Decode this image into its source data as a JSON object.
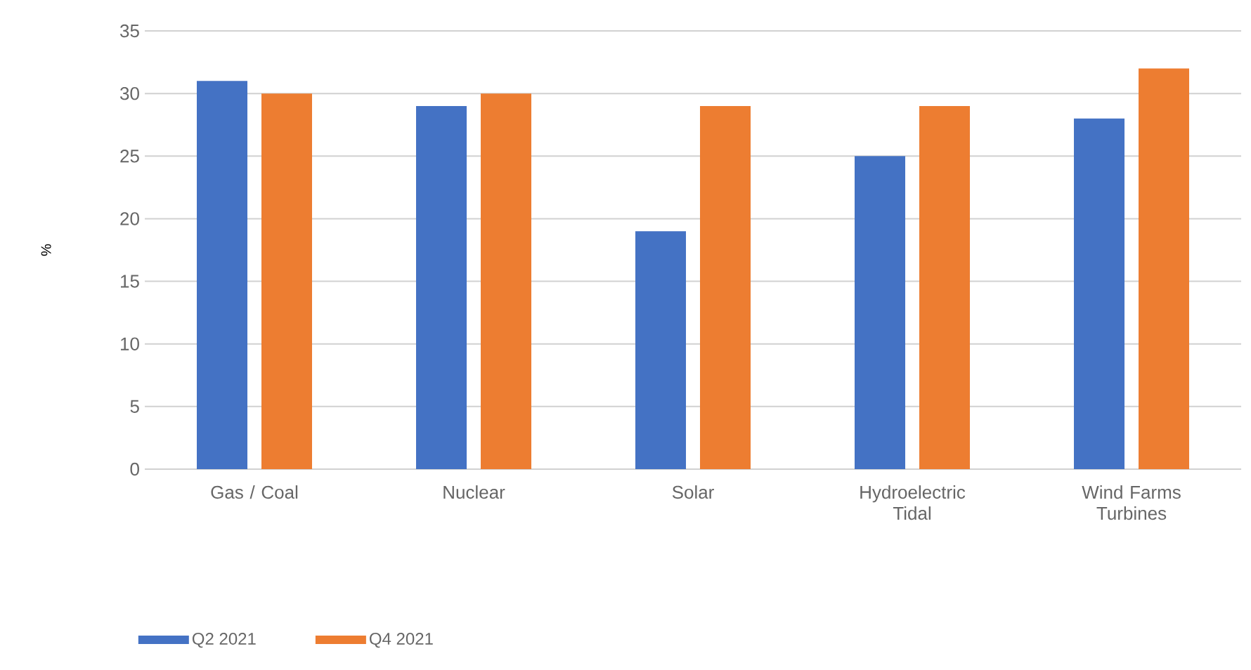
{
  "chart_data": {
    "type": "bar",
    "ylabel": "%",
    "categories": [
      "Gas / Coal",
      "Nuclear",
      "Solar",
      "Hydroelectric Tidal",
      "Wind Farms Turbines"
    ],
    "series": [
      {
        "name": "Q2 2021",
        "color": "#4472c4",
        "values": [
          31,
          29,
          19,
          25,
          28
        ]
      },
      {
        "name": "Q4 2021",
        "color": "#ed7d31",
        "values": [
          30,
          30,
          29,
          29,
          32
        ]
      }
    ],
    "ylim": [
      0,
      35
    ],
    "yticks": [
      0,
      5,
      10,
      15,
      20,
      25,
      30,
      35
    ],
    "grid": "y",
    "legend": "bottom left"
  }
}
